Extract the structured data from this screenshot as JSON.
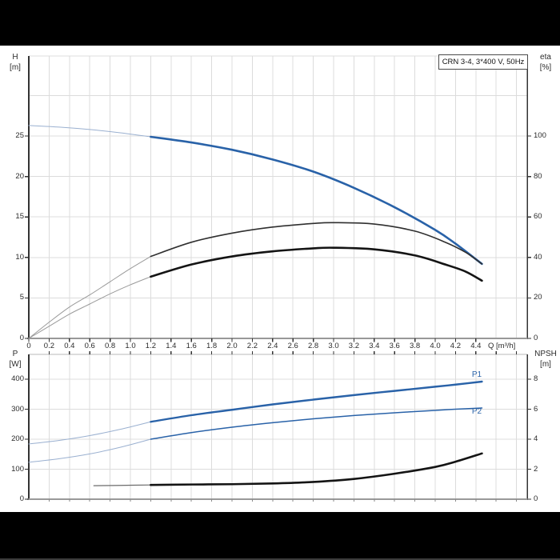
{
  "window": {
    "top_bar": "",
    "bottom_bar": ""
  },
  "title_box": {
    "label": "CRN 3-4, 3*400 V, 50Hz"
  },
  "colors": {
    "curve_blue": "#2962a8",
    "curve_blue_thin": "#9ab0d0",
    "curve_black": "#141414",
    "curve_gray_thin": "#9a9a9a",
    "grid": "#dcdcdc",
    "axis_dark": "#333333",
    "axis_gray": "#999999",
    "tick_text": "#2b2b2b"
  },
  "chart_data": [
    {
      "id": "head-efficiency",
      "type": "line",
      "title": "CRN 3-4, 3*400 V, 50Hz",
      "x_axis": {
        "label": "Q [m³/h]",
        "tick_values": [
          0,
          0.2,
          0.4,
          0.6,
          0.8,
          1.0,
          1.2,
          1.4,
          1.6,
          1.8,
          2.0,
          2.2,
          2.4,
          2.6,
          2.8,
          3.0,
          3.2,
          3.4,
          3.6,
          3.8,
          4.0,
          4.2,
          4.4
        ],
        "tick_labels": [
          "0",
          "0.2",
          "0.4",
          "0.6",
          "0.8",
          "1.0",
          "1.2",
          "1.4",
          "1.6",
          "1.8",
          "2.0",
          "2.2",
          "2.4",
          "2.6",
          "2.8",
          "3.0",
          "3.2",
          "3.4",
          "3.6",
          "3.8",
          "4.0",
          "4.2",
          "4.4"
        ],
        "range": [
          0,
          4.9
        ],
        "grid": true
      },
      "left_axis": {
        "label": "H",
        "unit": "[m]",
        "tick_values": [
          0,
          5,
          10,
          15,
          20,
          25
        ],
        "tick_labels": [
          "0",
          "5",
          "10",
          "15",
          "20",
          "25"
        ],
        "grid_values": [
          5,
          10,
          15,
          20,
          25,
          30
        ],
        "range": [
          0,
          34.9
        ]
      },
      "right_axis": {
        "label": "eta",
        "unit": "[%]",
        "tick_values": [
          0,
          20,
          40,
          60,
          80,
          100
        ],
        "tick_labels": [
          "0",
          "20",
          "40",
          "60",
          "80",
          "100"
        ],
        "range": [
          0,
          139.5
        ]
      },
      "series": [
        {
          "name": "h-q-curve-extension",
          "axis": "H",
          "role": "head curve outside duty range",
          "color": "#9ab0d0",
          "width": 1,
          "points": [
            [
              0,
              26.3
            ],
            [
              0.3,
              26.1
            ],
            [
              0.6,
              25.8
            ],
            [
              0.9,
              25.4
            ],
            [
              1.2,
              24.9
            ]
          ]
        },
        {
          "name": "h-q-curve",
          "axis": "H",
          "role": "head curve",
          "color": "#2962a8",
          "width": 2.6,
          "points": [
            [
              1.2,
              24.9
            ],
            [
              1.6,
              24.2
            ],
            [
              2.0,
              23.3
            ],
            [
              2.4,
              22.1
            ],
            [
              2.8,
              20.6
            ],
            [
              3.2,
              18.6
            ],
            [
              3.6,
              16.2
            ],
            [
              4.0,
              13.4
            ],
            [
              4.2,
              11.7
            ],
            [
              4.46,
              9.2
            ]
          ]
        },
        {
          "name": "eta-pump-curve-extension",
          "axis": "eta",
          "role": "pump efficiency outside duty range",
          "color": "#9a9a9a",
          "width": 1,
          "points": [
            [
              0,
              0
            ],
            [
              0.2,
              8
            ],
            [
              0.4,
              15.5
            ],
            [
              0.6,
              21.5
            ],
            [
              0.8,
              28
            ],
            [
              1.0,
              34.5
            ],
            [
              1.2,
              40.5
            ]
          ]
        },
        {
          "name": "eta-pump-curve",
          "axis": "eta",
          "role": "pump efficiency",
          "color": "#2f2f2f",
          "width": 1.6,
          "points": [
            [
              1.2,
              40.5
            ],
            [
              1.6,
              47.5
            ],
            [
              2.0,
              52
            ],
            [
              2.4,
              55
            ],
            [
              2.8,
              56.8
            ],
            [
              3.0,
              57.2
            ],
            [
              3.4,
              56.5
            ],
            [
              3.8,
              53
            ],
            [
              4.1,
              47.5
            ],
            [
              4.3,
              42.5
            ],
            [
              4.46,
              36.8
            ]
          ]
        },
        {
          "name": "eta-pump-motor-curve-extension",
          "axis": "eta",
          "role": "pump+motor efficiency outside duty range",
          "color": "#9a9a9a",
          "width": 1,
          "points": [
            [
              0,
              0
            ],
            [
              0.2,
              6
            ],
            [
              0.4,
              12
            ],
            [
              0.6,
              17
            ],
            [
              0.8,
              22
            ],
            [
              1.0,
              26.5
            ],
            [
              1.2,
              30.5
            ]
          ]
        },
        {
          "name": "eta-pump-motor-curve",
          "axis": "eta",
          "role": "pump+motor efficiency",
          "color": "#141414",
          "width": 2.6,
          "points": [
            [
              1.2,
              30.5
            ],
            [
              1.6,
              36.5
            ],
            [
              2.0,
              40.5
            ],
            [
              2.4,
              43
            ],
            [
              2.8,
              44.5
            ],
            [
              3.0,
              44.8
            ],
            [
              3.4,
              44
            ],
            [
              3.8,
              41
            ],
            [
              4.1,
              36.5
            ],
            [
              4.3,
              33
            ],
            [
              4.46,
              28.5
            ]
          ]
        }
      ]
    },
    {
      "id": "power-npsh",
      "type": "line",
      "x_axis": {
        "label": "",
        "grid": true
      },
      "left_axis": {
        "label": "P",
        "unit": "[W]",
        "tick_values": [
          0,
          100,
          200,
          300,
          400
        ],
        "tick_labels": [
          "0",
          "100",
          "200",
          "300",
          "400"
        ],
        "grid_values": [
          100,
          200,
          300,
          400
        ],
        "range": [
          0,
          482
        ]
      },
      "right_axis": {
        "label": "NPSH",
        "unit": "[m]",
        "tick_values": [
          0,
          2,
          4,
          6,
          8
        ],
        "tick_labels": [
          "0",
          "2",
          "4",
          "6",
          "8"
        ],
        "range": [
          0,
          9.7
        ]
      },
      "annotations": [
        {
          "label": "P1"
        },
        {
          "label": "P2"
        }
      ],
      "series": [
        {
          "name": "p1-curve-extension",
          "axis": "P",
          "role": "input power outside duty range",
          "color": "#9ab0d0",
          "width": 1,
          "points": [
            [
              0,
              184
            ],
            [
              0.3,
              196
            ],
            [
              0.6,
              212
            ],
            [
              0.9,
              233
            ],
            [
              1.2,
              258
            ]
          ]
        },
        {
          "name": "p1-curve",
          "axis": "P",
          "role": "input power P1",
          "color": "#2962a8",
          "width": 2.4,
          "points": [
            [
              1.2,
              258
            ],
            [
              1.6,
              280
            ],
            [
              2.0,
              298
            ],
            [
              2.4,
              316
            ],
            [
              2.8,
              332
            ],
            [
              3.2,
              347
            ],
            [
              3.6,
              361
            ],
            [
              4.0,
              375
            ],
            [
              4.2,
              382
            ],
            [
              4.46,
              392
            ]
          ]
        },
        {
          "name": "p2-curve-extension",
          "axis": "P",
          "role": "shaft power outside duty range",
          "color": "#9ab0d0",
          "width": 1,
          "points": [
            [
              0,
              123
            ],
            [
              0.3,
              135
            ],
            [
              0.6,
              151
            ],
            [
              0.9,
              173
            ],
            [
              1.2,
              200
            ]
          ]
        },
        {
          "name": "p2-curve",
          "axis": "P",
          "role": "shaft power P2",
          "color": "#2962a8",
          "width": 1.5,
          "points": [
            [
              1.2,
              200
            ],
            [
              1.6,
              222
            ],
            [
              2.0,
              240
            ],
            [
              2.4,
              255
            ],
            [
              2.8,
              268
            ],
            [
              3.2,
              279
            ],
            [
              3.6,
              288
            ],
            [
              4.0,
              296
            ],
            [
              4.2,
              300
            ],
            [
              4.46,
              304
            ]
          ]
        },
        {
          "name": "npsh-curve-extension",
          "axis": "NPSH",
          "role": "NPSH outside duty range",
          "color": "#6b6b6b",
          "width": 1.2,
          "points": [
            [
              0.64,
              0.9
            ],
            [
              0.9,
              0.92
            ],
            [
              1.2,
              0.95
            ]
          ]
        },
        {
          "name": "npsh-curve",
          "axis": "NPSH",
          "role": "NPSH",
          "color": "#141414",
          "width": 2.6,
          "points": [
            [
              1.2,
              0.95
            ],
            [
              1.6,
              0.98
            ],
            [
              2.0,
              1.0
            ],
            [
              2.4,
              1.05
            ],
            [
              2.8,
              1.15
            ],
            [
              3.2,
              1.35
            ],
            [
              3.6,
              1.7
            ],
            [
              4.0,
              2.15
            ],
            [
              4.2,
              2.5
            ],
            [
              4.46,
              3.05
            ]
          ]
        }
      ]
    }
  ]
}
